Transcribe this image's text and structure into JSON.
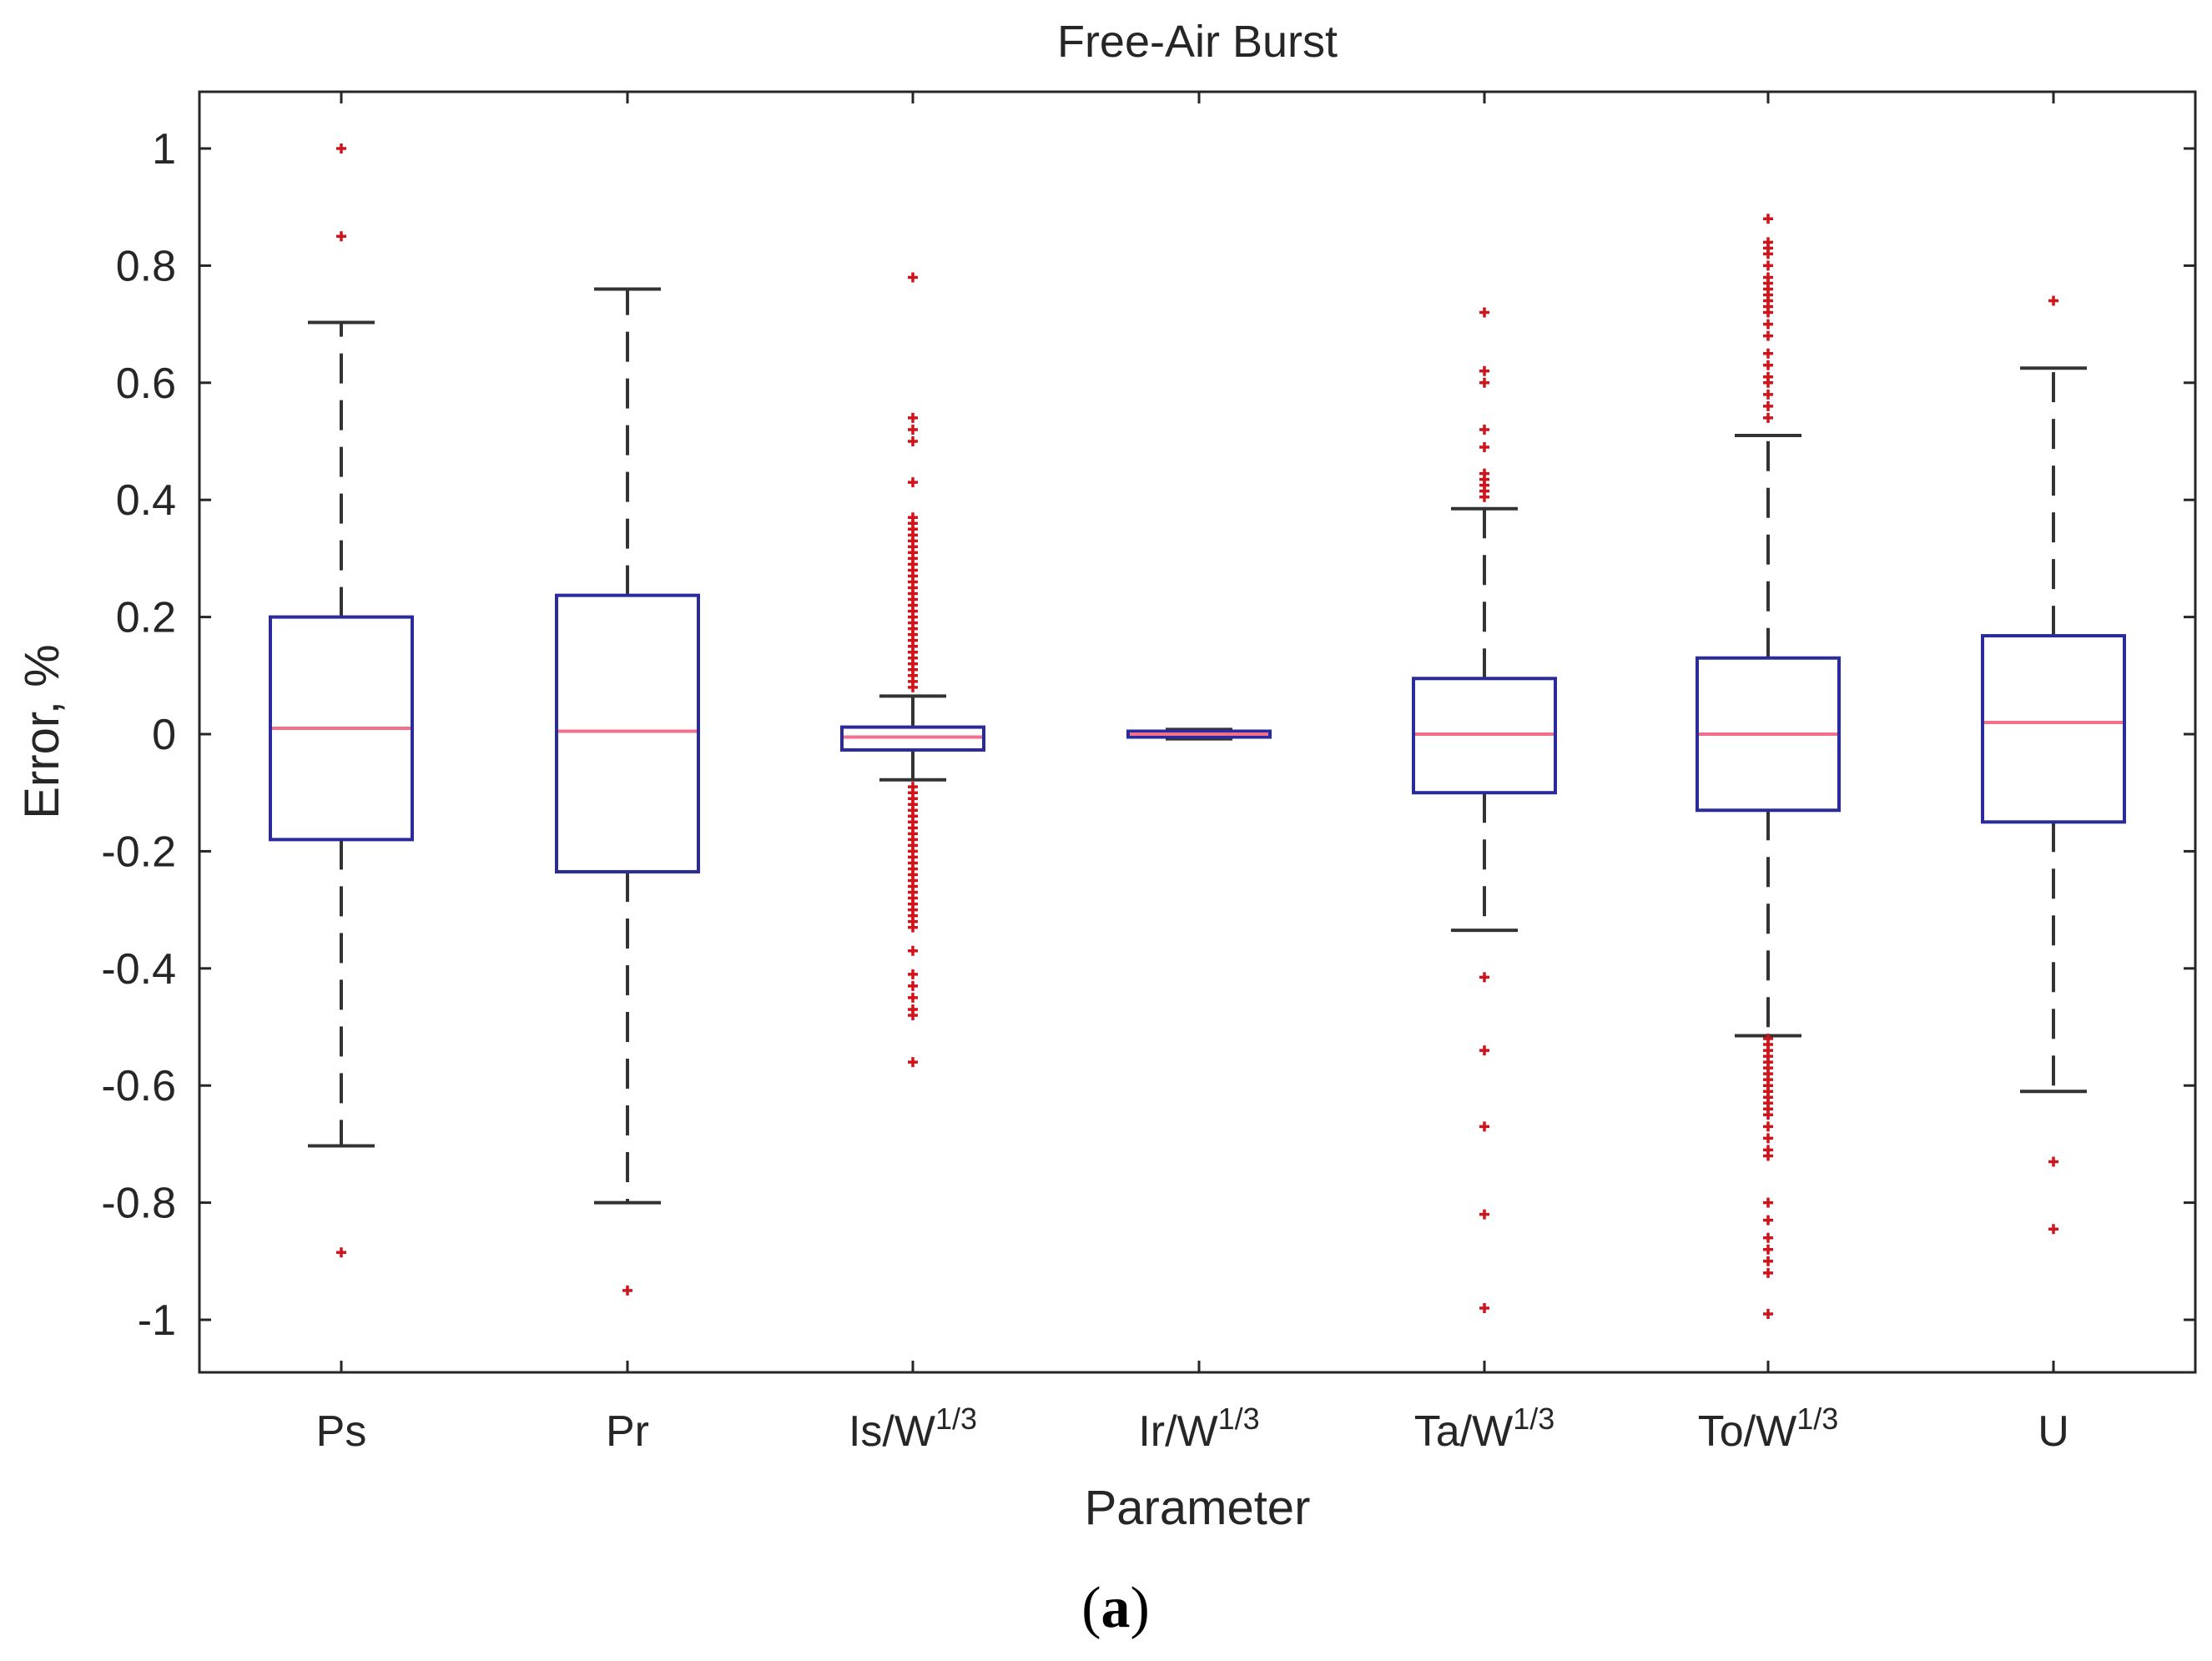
{
  "chart_data": {
    "type": "boxplot",
    "title": "Free-Air Burst",
    "xlabel": "Parameter",
    "ylabel": "Error, %",
    "ylim": [
      -1.08,
      1.1
    ],
    "yticks": [
      1,
      0.8,
      0.6,
      0.4,
      0.2,
      0,
      -0.2,
      -0.4,
      -0.6,
      -0.8,
      -1
    ],
    "ytick_labels": [
      "1",
      "0.8",
      "0.6",
      "0.4",
      "0.2",
      "0",
      "-0.2",
      "-0.4",
      "-0.6",
      "-0.8",
      "-1"
    ],
    "grid": false,
    "colors": {
      "box": "#2b2b9c",
      "median": "#f2708a",
      "whisker": "#333333",
      "outlier": "#d0141c",
      "axis": "#262626",
      "text": "#262626"
    },
    "categories": [
      {
        "base": "Ps",
        "sup": ""
      },
      {
        "base": "Pr",
        "sup": ""
      },
      {
        "base": "Is/W",
        "sup": "1/3"
      },
      {
        "base": "Ir/W",
        "sup": "1/3"
      },
      {
        "base": "Ta/W",
        "sup": "1/3"
      },
      {
        "base": "To/W",
        "sup": "1/3"
      },
      {
        "base": "U",
        "sup": ""
      }
    ],
    "boxes": [
      {
        "whisker_low": -0.703,
        "q1": -0.18,
        "median": 0.01,
        "q3": 0.2,
        "whisker_high": 0.703,
        "outliers": [
          1.0,
          0.85,
          -0.885
        ]
      },
      {
        "whisker_low": -0.8,
        "q1": -0.235,
        "median": 0.005,
        "q3": 0.237,
        "whisker_high": 0.76,
        "outliers": [
          -0.95
        ]
      },
      {
        "whisker_low": -0.078,
        "q1": -0.027,
        "median": -0.005,
        "q3": 0.012,
        "whisker_high": 0.065,
        "outliers": [
          0.78,
          0.54,
          0.52,
          0.5,
          0.43,
          0.37,
          0.36,
          0.35,
          0.34,
          0.33,
          0.32,
          0.31,
          0.3,
          0.29,
          0.28,
          0.27,
          0.26,
          0.25,
          0.24,
          0.23,
          0.22,
          0.21,
          0.2,
          0.19,
          0.18,
          0.17,
          0.16,
          0.15,
          0.14,
          0.13,
          0.12,
          0.11,
          0.1,
          0.09,
          0.08,
          -0.09,
          -0.1,
          -0.11,
          -0.12,
          -0.13,
          -0.14,
          -0.15,
          -0.16,
          -0.17,
          -0.18,
          -0.19,
          -0.2,
          -0.21,
          -0.22,
          -0.23,
          -0.24,
          -0.25,
          -0.26,
          -0.27,
          -0.28,
          -0.29,
          -0.3,
          -0.31,
          -0.32,
          -0.33,
          -0.37,
          -0.41,
          -0.43,
          -0.45,
          -0.47,
          -0.48,
          -0.56
        ]
      },
      {
        "whisker_low": -0.008,
        "q1": -0.005,
        "median": 0.0,
        "q3": 0.005,
        "whisker_high": 0.008,
        "outliers": []
      },
      {
        "whisker_low": -0.335,
        "q1": -0.1,
        "median": 0.0,
        "q3": 0.095,
        "whisker_high": 0.385,
        "outliers": [
          0.72,
          0.62,
          0.6,
          0.52,
          0.49,
          0.445,
          0.435,
          0.425,
          0.415,
          0.405,
          -0.415,
          -0.54,
          -0.67,
          -0.82,
          -0.98
        ]
      },
      {
        "whisker_low": -0.515,
        "q1": -0.13,
        "median": 0.0,
        "q3": 0.13,
        "whisker_high": 0.51,
        "outliers": [
          0.88,
          0.84,
          0.83,
          0.82,
          0.8,
          0.78,
          0.77,
          0.76,
          0.75,
          0.74,
          0.73,
          0.72,
          0.7,
          0.68,
          0.65,
          0.63,
          0.61,
          0.6,
          0.58,
          0.56,
          0.54,
          -0.52,
          -0.53,
          -0.54,
          -0.55,
          -0.56,
          -0.57,
          -0.58,
          -0.59,
          -0.6,
          -0.61,
          -0.62,
          -0.63,
          -0.64,
          -0.65,
          -0.67,
          -0.69,
          -0.71,
          -0.72,
          -0.8,
          -0.83,
          -0.86,
          -0.88,
          -0.9,
          -0.92,
          -0.99
        ]
      },
      {
        "whisker_low": -0.61,
        "q1": -0.15,
        "median": 0.02,
        "q3": 0.168,
        "whisker_high": 0.625,
        "outliers": [
          0.74,
          -0.73,
          -0.845
        ]
      }
    ]
  },
  "caption": {
    "open": "(",
    "letter": "a",
    "close": ")"
  }
}
